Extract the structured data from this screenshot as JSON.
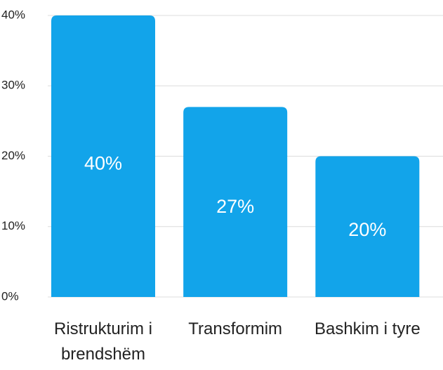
{
  "chart_data": {
    "type": "bar",
    "categories": [
      "Ristrukturim i brendshëm",
      "Transformim",
      "Bashkim i tyre"
    ],
    "values": [
      40,
      27,
      20
    ],
    "value_labels": [
      "40%",
      "27%",
      "20%"
    ],
    "color": "#12a4ea",
    "ylim": [
      0,
      40
    ],
    "yticks": [
      {
        "value": 0,
        "label": "0%"
      },
      {
        "value": 10,
        "label": "10%"
      },
      {
        "value": 20,
        "label": "20%"
      },
      {
        "value": 30,
        "label": "30%"
      },
      {
        "value": 40,
        "label": "40%"
      }
    ],
    "grid": true
  }
}
